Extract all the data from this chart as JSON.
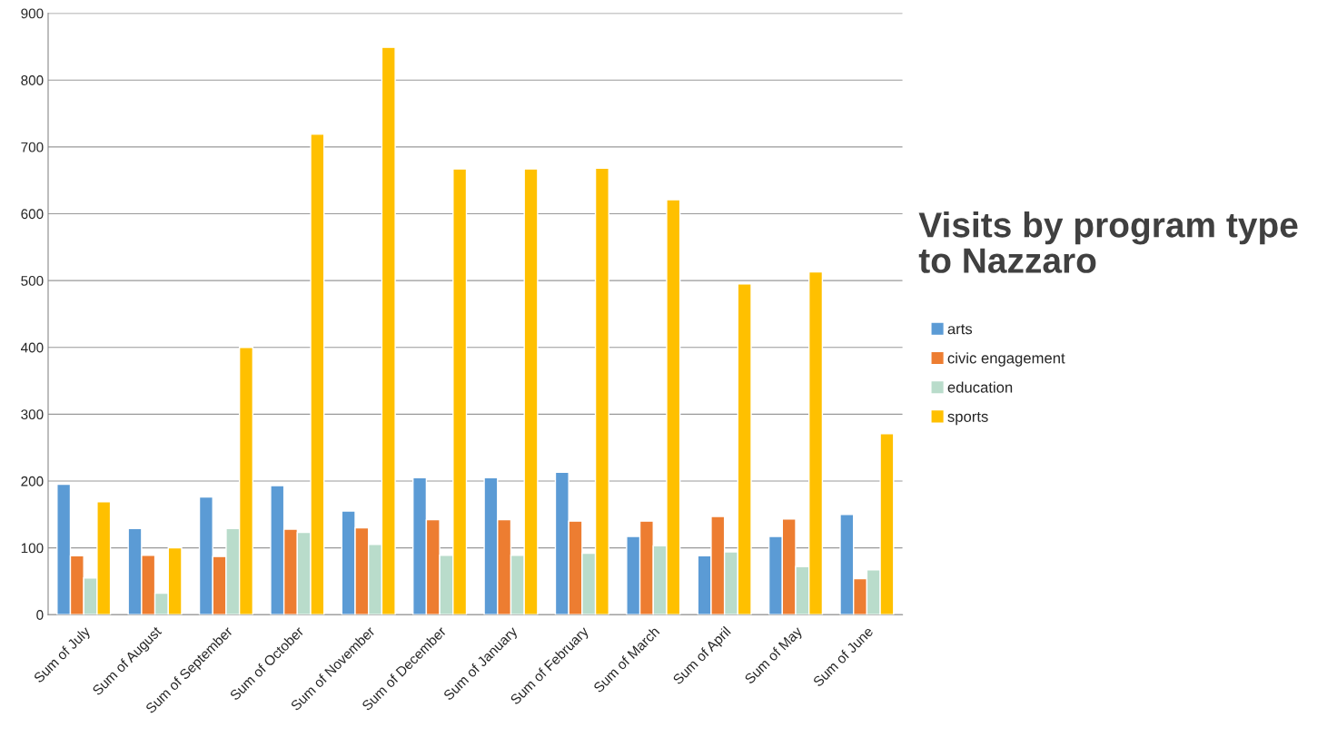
{
  "chart_data": {
    "type": "bar",
    "title": "Visits by program type to Nazzaro",
    "categories": [
      "Sum of July",
      "Sum of August",
      "Sum of September",
      "Sum of October",
      "Sum of November",
      "Sum of December",
      "Sum of January",
      "Sum of February",
      "Sum of March",
      "Sum of April",
      "Sum of May",
      "Sum of June"
    ],
    "series": [
      {
        "name": "arts",
        "color": "#5b9bd5",
        "values": [
          195,
          129,
          176,
          193,
          155,
          205,
          205,
          213,
          117,
          88,
          117,
          150
        ]
      },
      {
        "name": "civic engagement",
        "color": "#ed7d31",
        "values": [
          88,
          89,
          87,
          128,
          130,
          142,
          142,
          140,
          140,
          147,
          143,
          54
        ]
      },
      {
        "name": "education",
        "color": "#b9dccb",
        "values": [
          55,
          32,
          129,
          123,
          105,
          89,
          89,
          92,
          103,
          94,
          72,
          67
        ]
      },
      {
        "name": "sports",
        "color": "#ffc000",
        "values": [
          169,
          100,
          400,
          719,
          849,
          667,
          667,
          668,
          621,
          495,
          513,
          271
        ]
      }
    ],
    "ylim": [
      0,
      900
    ],
    "yticks": [
      0,
      100,
      200,
      300,
      400,
      500,
      600,
      700,
      800,
      900
    ],
    "grid": "y",
    "legend": "right"
  }
}
